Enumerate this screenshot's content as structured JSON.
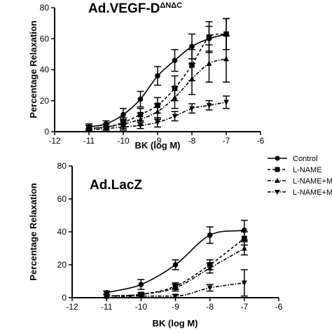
{
  "chart_data": [
    {
      "type": "line",
      "title": "Ad.VEGF-D",
      "title_superscript": "ΔNΔC",
      "xlabel": "BK (log M)",
      "ylabel": "Percentage Relaxation",
      "xlim": [
        -12,
        -6
      ],
      "ylim": [
        0,
        80
      ],
      "x_ticks": [
        -12,
        -11,
        -10,
        -9,
        -8,
        -7,
        -6
      ],
      "y_ticks": [
        0,
        20,
        40,
        60,
        80
      ],
      "legend": "none",
      "grid": false,
      "series": [
        {
          "name": "Control",
          "marker": "circle",
          "line_style": "solid",
          "x": [
            -11,
            -10.5,
            -10,
            -9.5,
            -9,
            -8.5,
            -8,
            -7.5,
            -7
          ],
          "y": [
            3,
            5,
            11,
            21,
            36,
            46,
            55,
            60,
            63
          ],
          "err": [
            2,
            2,
            4,
            5,
            6,
            7,
            8,
            8,
            10
          ]
        },
        {
          "name": "L-NAME",
          "marker": "square",
          "line_style": "dashed",
          "x": [
            -11,
            -10.5,
            -10,
            -9.5,
            -9,
            -8.5,
            -8,
            -7.5,
            -7
          ],
          "y": [
            2,
            3,
            6,
            11,
            17,
            28,
            43,
            61,
            63
          ],
          "err": [
            2,
            2,
            3,
            4,
            5,
            8,
            10,
            10,
            10
          ]
        },
        {
          "name": "L-NAME+M",
          "marker": "triangle-up",
          "line_style": "dashdot",
          "x": [
            -11,
            -10.5,
            -10,
            -9.5,
            -9,
            -8.5,
            -8,
            -7.5,
            -7
          ],
          "y": [
            2,
            3,
            5,
            8,
            13,
            22,
            34,
            44,
            47
          ],
          "err": [
            2,
            2,
            3,
            4,
            5,
            7,
            10,
            12,
            15
          ]
        },
        {
          "name": "L-NAME+M",
          "marker": "triangle-down",
          "line_style": "dashdot",
          "x": [
            -11,
            -10.5,
            -10,
            -9.5,
            -9,
            -8.5,
            -8,
            -7.5,
            -7
          ],
          "y": [
            1,
            2,
            3,
            4,
            6,
            10,
            15,
            17,
            19
          ],
          "err": [
            1,
            1,
            2,
            2,
            3,
            3,
            3,
            3,
            4
          ]
        }
      ]
    },
    {
      "type": "line",
      "title": "Ad.LacZ",
      "xlabel": "BK (log M)",
      "ylabel": "Percentage Relaxation",
      "xlim": [
        -12,
        -6
      ],
      "ylim": [
        0,
        80
      ],
      "x_ticks": [
        -12,
        -11,
        -10,
        -9,
        -8,
        -7,
        -6
      ],
      "y_ticks": [
        0,
        20,
        40,
        60,
        80
      ],
      "legend": "right",
      "grid": false,
      "series": [
        {
          "name": "Control",
          "marker": "circle",
          "line_style": "solid",
          "x": [
            -11,
            -10,
            -9,
            -8,
            -7
          ],
          "y": [
            3,
            8,
            20,
            38,
            41
          ],
          "err": [
            1,
            3,
            3,
            5,
            6
          ]
        },
        {
          "name": "L-NAME",
          "marker": "square",
          "line_style": "dashed",
          "x": [
            -11,
            -10,
            -9,
            -8,
            -7
          ],
          "y": [
            1,
            2,
            7,
            20,
            36
          ],
          "err": [
            1,
            1,
            2,
            3,
            4
          ]
        },
        {
          "name": "L-NAME+M",
          "marker": "triangle-up",
          "line_style": "dashdot",
          "x": [
            -11,
            -10,
            -9,
            -8,
            -7
          ],
          "y": [
            1,
            2,
            6,
            18,
            30
          ],
          "err": [
            1,
            1,
            2,
            3,
            4
          ]
        },
        {
          "name": "L-NAME+M",
          "marker": "triangle-down",
          "line_style": "dashdot",
          "x": [
            -11,
            -10,
            -9,
            -8,
            -7
          ],
          "y": [
            0,
            1,
            1,
            6,
            9
          ],
          "err": [
            0,
            1,
            1,
            2,
            8
          ]
        }
      ]
    }
  ]
}
